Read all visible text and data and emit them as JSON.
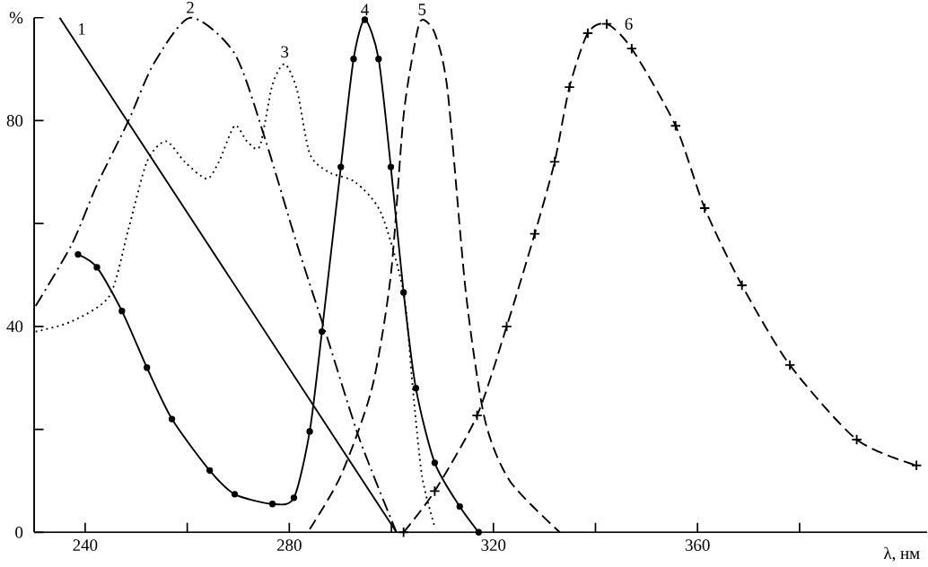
{
  "chart_data": {
    "type": "line",
    "xlabel": "λ, нм",
    "xlim": [
      230,
      405
    ],
    "ylim": [
      0,
      100
    ],
    "xticks": [
      240,
      {
        "value": 260,
        "label": null
      },
      280,
      {
        "value": 300,
        "label": null
      },
      320,
      {
        "value": 340,
        "label": null
      },
      360,
      {
        "value": 380,
        "label": null
      }
    ],
    "yticks": [
      0,
      {
        "value": 20,
        "label": null
      },
      40,
      {
        "value": 60,
        "label": null
      },
      80,
      {
        "value": 100,
        "label": "%"
      }
    ],
    "grid": false,
    "series": [
      {
        "name": "1",
        "color": "#000000",
        "line_style": "solid",
        "marker": "none",
        "x": [
          235,
          301
        ],
        "values": [
          100,
          0
        ]
      },
      {
        "name": "2",
        "color": "#000000",
        "line_style": "dashdot",
        "marker": "none",
        "x": [
          230.3,
          237.4,
          242.3,
          248.5,
          253.4,
          260.6,
          269.3,
          275.4,
          281.5,
          287.7,
          293.8,
          301
        ],
        "values": [
          44,
          56,
          67.5,
          80,
          91,
          100,
          93,
          76,
          56,
          37,
          18,
          0
        ]
      },
      {
        "name": "3",
        "color": "#000000",
        "line_style": "dotted",
        "marker": "none",
        "x": [
          230.3,
          237.4,
          244.8,
          248.5,
          252.1,
          255.8,
          259.5,
          263.8,
          266.2,
          269.3,
          271.7,
          274.2,
          276.7,
          279.1,
          281.5,
          284,
          287.7,
          293,
          298,
          302.4,
          304.2,
          306,
          308.5
        ],
        "values": [
          39,
          41,
          46,
          59,
          72,
          76,
          72,
          68.7,
          72,
          79,
          76,
          75,
          87,
          91,
          86,
          73.6,
          70,
          68,
          62,
          46.6,
          28,
          11,
          1
        ]
      },
      {
        "name": "4",
        "color": "#000000",
        "line_style": "solid",
        "marker": "circle",
        "x": [
          238.6,
          242.3,
          247.2,
          252.1,
          257,
          264.4,
          269.3,
          276.7,
          280.9,
          284,
          286.4,
          290.1,
          292.6,
          294.8,
          297.5,
          299.9,
          302.4,
          304.8,
          308.5,
          313.4,
          317.1
        ],
        "values": [
          54,
          51.5,
          43,
          32,
          22,
          12,
          7.4,
          5.5,
          6.7,
          19.6,
          39,
          71,
          92,
          99.6,
          92,
          71,
          46.6,
          28,
          13.5,
          5,
          0
        ]
      },
      {
        "name": "5",
        "color": "#000000",
        "line_style": "dashed",
        "marker": "none",
        "x": [
          284,
          290.1,
          296.2,
          299.9,
          302.4,
          304.8,
          306,
          308.5,
          311,
          314.6,
          318.3,
          323.2,
          333
        ],
        "values": [
          0.6,
          11,
          28,
          50,
          81,
          96,
          99.6,
          97,
          86,
          46.6,
          22,
          10,
          0
        ]
      },
      {
        "name": "6",
        "color": "#000000",
        "line_style": "dashed",
        "marker": "cross",
        "x": [
          302.4,
          308.5,
          316.8,
          322.6,
          328.1,
          332,
          334.9,
          338.5,
          342.2,
          347.1,
          355.7,
          361.4,
          368.7,
          378.1,
          391.2,
          402.9
        ],
        "values": [
          0,
          8,
          22.7,
          40,
          58,
          72,
          86.5,
          97,
          98.8,
          94,
          79,
          63,
          48,
          32.5,
          18,
          13
        ]
      }
    ]
  }
}
